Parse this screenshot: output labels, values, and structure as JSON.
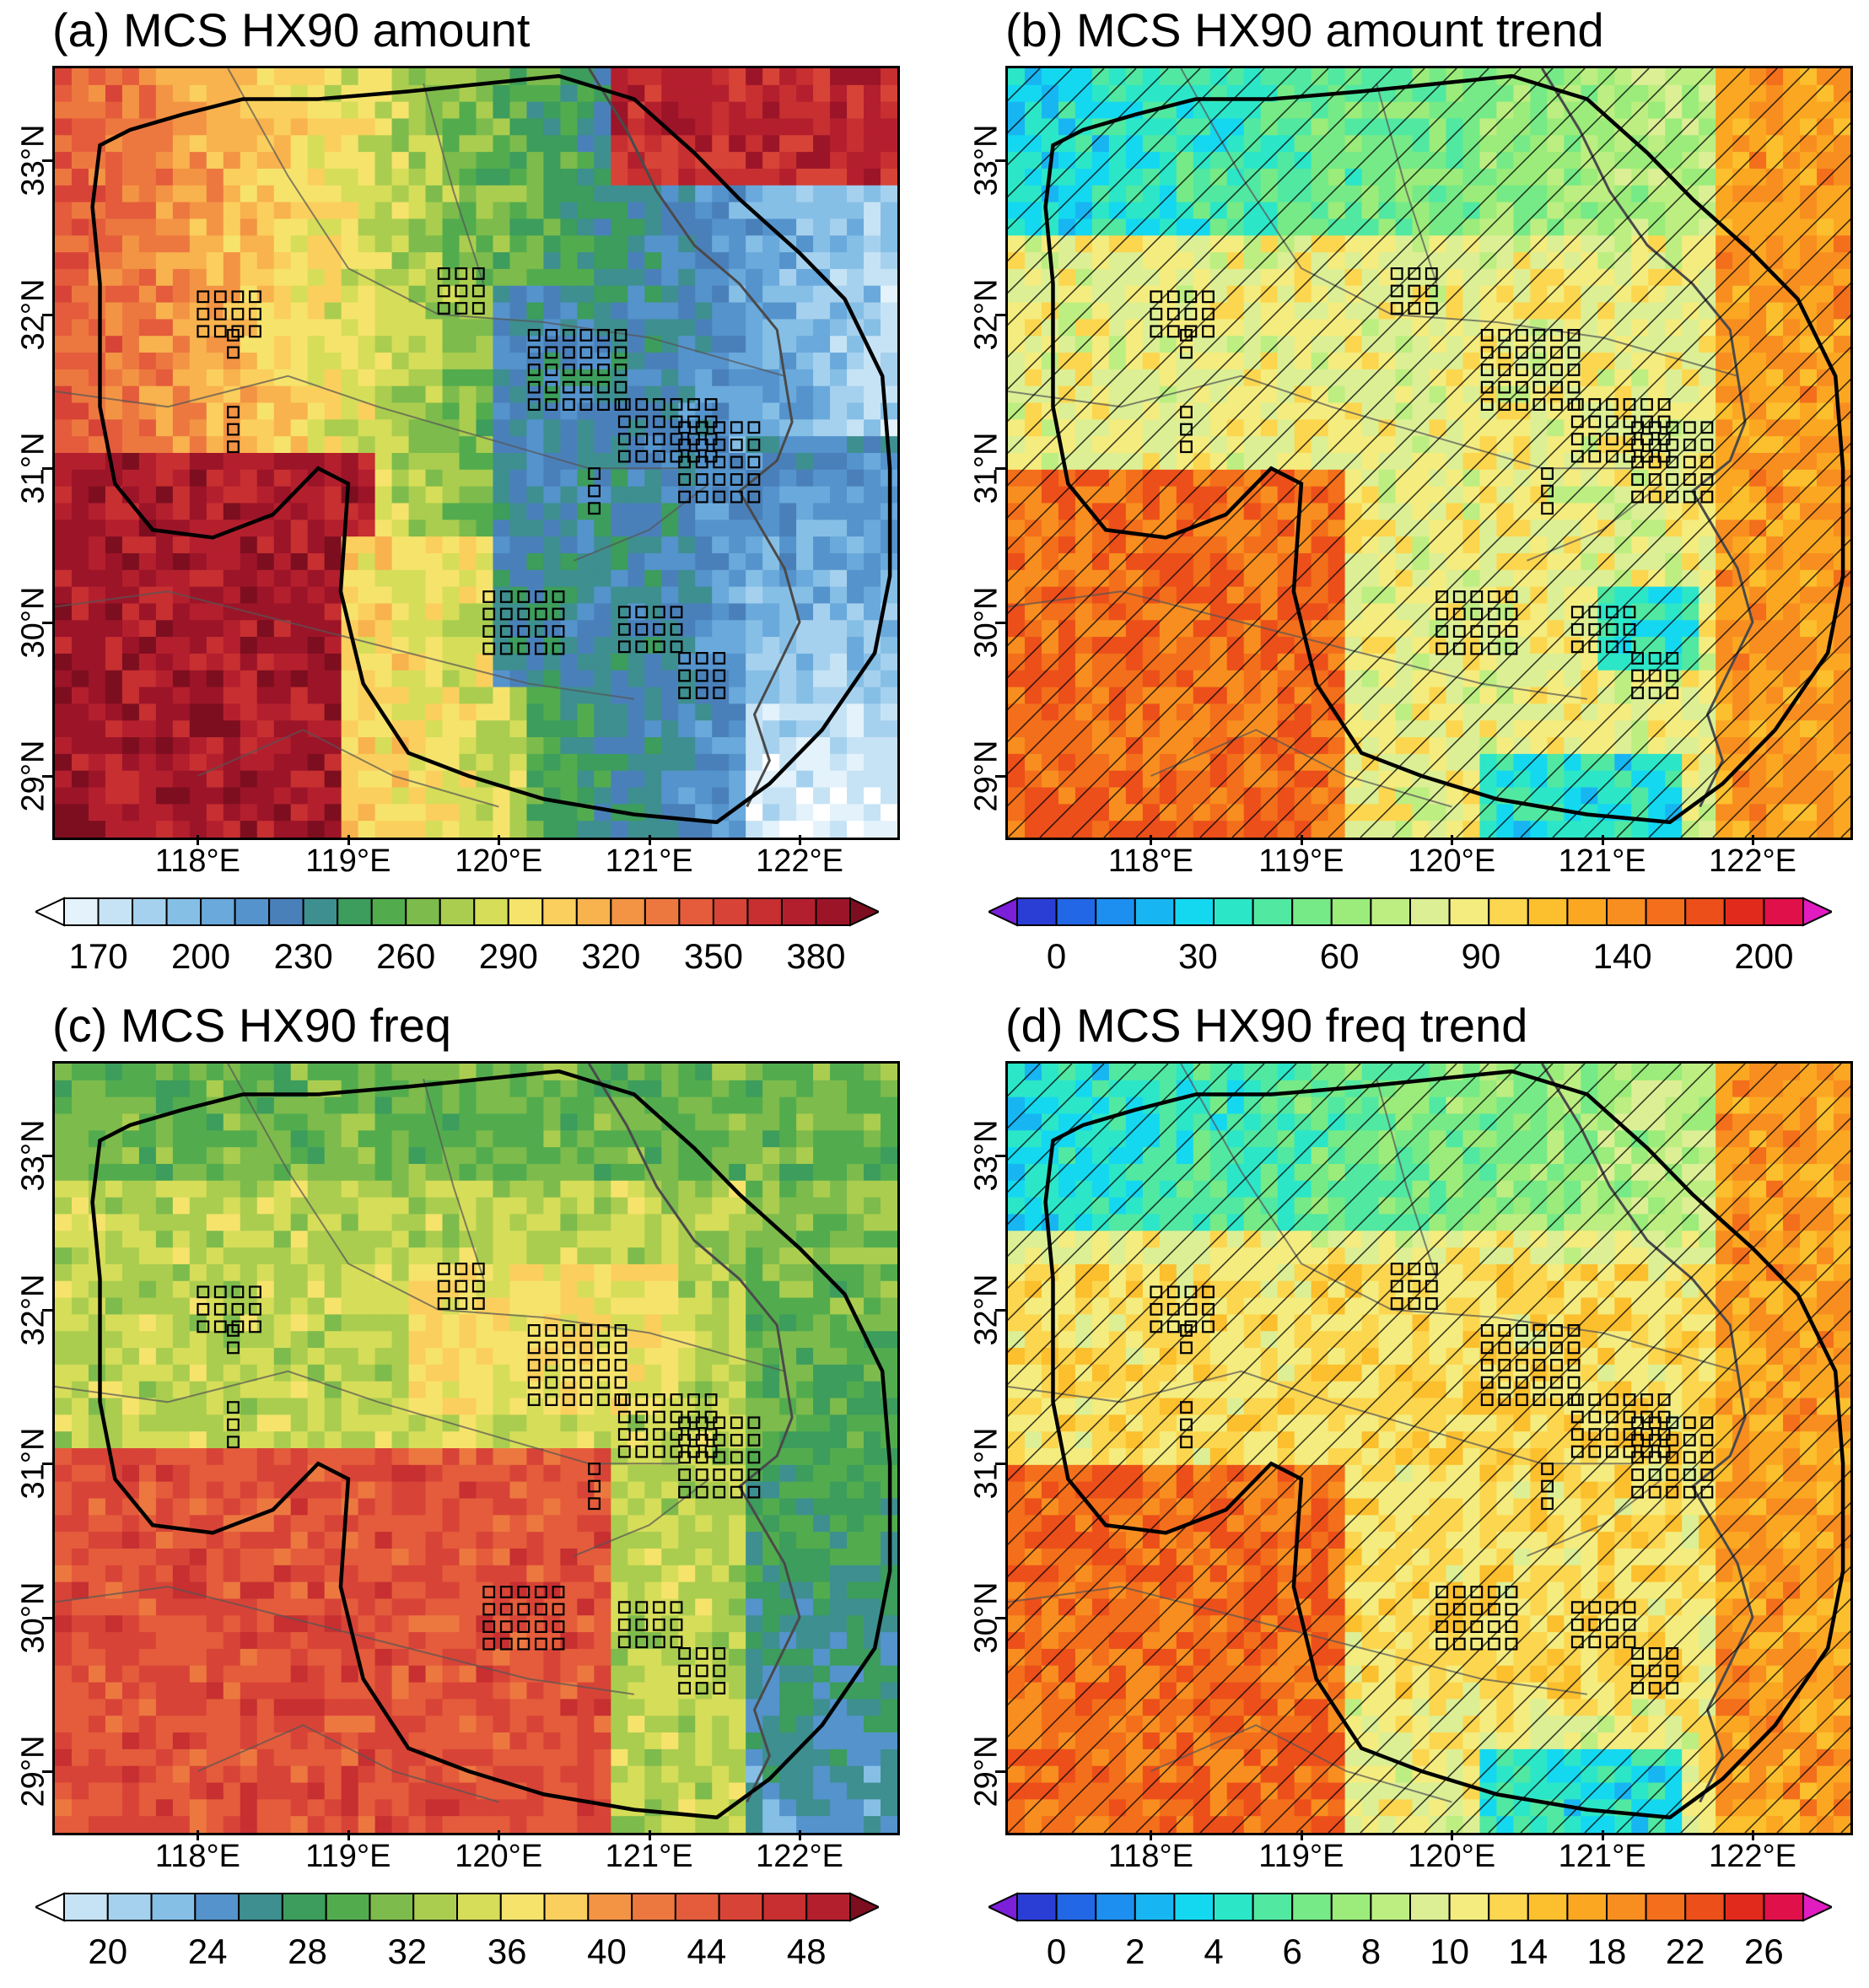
{
  "panels": [
    {
      "id": "a",
      "title": "(a) MCS HX90 amount",
      "variable": "MCS HX90 amount",
      "colorbar": {
        "labels": [
          "170",
          "200",
          "230",
          "260",
          "290",
          "320",
          "350",
          "380"
        ],
        "extend": "both",
        "colors": [
          "#ffffff",
          "#e3f2fb",
          "#c6e3f5",
          "#a6d1ee",
          "#86bfe6",
          "#6aa9db",
          "#5593cc",
          "#4a80ba",
          "#3e8f90",
          "#3c9d5c",
          "#52ac4e",
          "#7dbb4c",
          "#aacd4f",
          "#d6dd59",
          "#f6e36c",
          "#fbcf5d",
          "#f8b24e",
          "#f39444",
          "#ec7840",
          "#e45c3b",
          "#d84337",
          "#c72f31",
          "#b41f2e",
          "#9c1428",
          "#7c0e1f"
        ]
      },
      "stipple_boxes": true,
      "hatching": false
    },
    {
      "id": "b",
      "title": "(b) MCS HX90 amount trend",
      "variable": "MCS HX90 amount trend",
      "colorbar": {
        "labels": [
          "0",
          "30",
          "60",
          "90",
          "140",
          "200"
        ],
        "extend": "both",
        "colors": [
          "#7b1fd9",
          "#2a3ed6",
          "#2267e6",
          "#1d8ff0",
          "#17b6f2",
          "#14d8f0",
          "#2ce6c8",
          "#51e8a2",
          "#76ea86",
          "#9bec7a",
          "#bdee82",
          "#dcef95",
          "#f4ec7e",
          "#fcd64f",
          "#fcbf2d",
          "#fba722",
          "#f88e1f",
          "#f36f1b",
          "#ec4f1a",
          "#e22a1c",
          "#e0104a",
          "#e11cc0"
        ]
      },
      "stipple_boxes": true,
      "hatching": true
    },
    {
      "id": "c",
      "title": "(c) MCS HX90 freq",
      "variable": "MCS HX90 freq",
      "colorbar": {
        "labels": [
          "20",
          "24",
          "28",
          "32",
          "36",
          "40",
          "44",
          "48"
        ],
        "extend": "both",
        "colors": [
          "#ffffff",
          "#c6e3f5",
          "#a6d1ee",
          "#86bfe6",
          "#5593cc",
          "#3e8f90",
          "#3c9d5c",
          "#52ac4e",
          "#7dbb4c",
          "#aacd4f",
          "#d6dd59",
          "#f6e36c",
          "#fbcf5d",
          "#f39444",
          "#ec7840",
          "#e45c3b",
          "#d84337",
          "#c72f31",
          "#b41f2e",
          "#7c0e1f"
        ]
      },
      "stipple_boxes": true,
      "hatching": false
    },
    {
      "id": "d",
      "title": "(d) MCS HX90 freq trend",
      "variable": "MCS HX90 freq trend",
      "colorbar": {
        "labels": [
          "0",
          "2",
          "4",
          "6",
          "8",
          "10",
          "14",
          "18",
          "22",
          "26"
        ],
        "extend": "both",
        "colors": [
          "#7b1fd9",
          "#2a3ed6",
          "#2267e6",
          "#1d8ff0",
          "#17b6f2",
          "#14d8f0",
          "#2ce6c8",
          "#51e8a2",
          "#76ea86",
          "#9bec7a",
          "#bdee82",
          "#dcef95",
          "#f4ec7e",
          "#fcd64f",
          "#fcbf2d",
          "#fba722",
          "#f88e1f",
          "#f36f1b",
          "#ec4f1a",
          "#e22a1c",
          "#e0104a",
          "#e11cc0"
        ]
      },
      "stipple_boxes": true,
      "hatching": true
    }
  ],
  "axes": {
    "lon_labels": [
      "118°E",
      "119°E",
      "120°E",
      "121°E",
      "122°E"
    ],
    "lon_values": [
      118,
      119,
      120,
      121,
      122
    ],
    "lat_labels": [
      "29°N",
      "30°N",
      "31°N",
      "32°N",
      "33°N"
    ],
    "lat_values": [
      29,
      30,
      31,
      32,
      33
    ],
    "lon_range": [
      117.05,
      122.65
    ],
    "lat_range": [
      28.6,
      33.6
    ]
  },
  "map_elements": {
    "region_outline": "Yangtze River Delta boundary",
    "province_borders": true,
    "coastline": true
  }
}
